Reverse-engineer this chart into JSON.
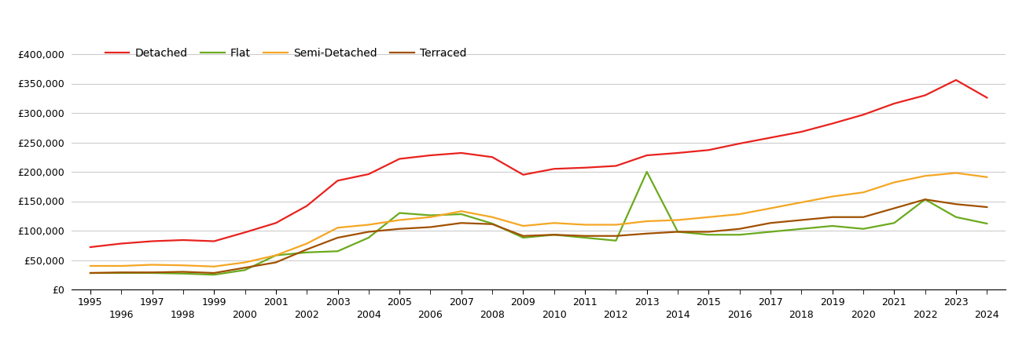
{
  "years": [
    1995,
    1996,
    1997,
    1998,
    1999,
    2000,
    2001,
    2002,
    2003,
    2004,
    2005,
    2006,
    2007,
    2008,
    2009,
    2010,
    2011,
    2012,
    2013,
    2014,
    2015,
    2016,
    2017,
    2018,
    2019,
    2020,
    2021,
    2022,
    2023,
    2024
  ],
  "detached": [
    72000,
    78000,
    82000,
    84000,
    82000,
    97000,
    113000,
    142000,
    185000,
    196000,
    222000,
    228000,
    232000,
    225000,
    195000,
    205000,
    207000,
    210000,
    228000,
    232000,
    237000,
    248000,
    258000,
    268000,
    282000,
    297000,
    316000,
    330000,
    356000,
    326000
  ],
  "flat": [
    28000,
    28000,
    28000,
    27000,
    25000,
    33000,
    58000,
    63000,
    65000,
    88000,
    130000,
    126000,
    128000,
    112000,
    88000,
    93000,
    88000,
    83000,
    200000,
    98000,
    93000,
    93000,
    98000,
    103000,
    108000,
    103000,
    113000,
    153000,
    123000,
    112000
  ],
  "semi_detached": [
    40000,
    40000,
    42000,
    41000,
    39000,
    46000,
    58000,
    78000,
    105000,
    110000,
    118000,
    123000,
    133000,
    123000,
    108000,
    113000,
    110000,
    110000,
    116000,
    118000,
    123000,
    128000,
    138000,
    148000,
    158000,
    165000,
    182000,
    193000,
    198000,
    191000
  ],
  "terraced": [
    28000,
    29000,
    29000,
    30000,
    28000,
    37000,
    46000,
    68000,
    88000,
    98000,
    103000,
    106000,
    113000,
    111000,
    91000,
    93000,
    91000,
    91000,
    95000,
    98000,
    98000,
    103000,
    113000,
    118000,
    123000,
    123000,
    138000,
    153000,
    145000,
    140000
  ],
  "colors": {
    "detached": "#e8221e",
    "flat": "#6aaa1e",
    "semi_detached": "#f5a623",
    "terraced": "#a05000"
  },
  "ylim": [
    0,
    420000
  ],
  "yticks": [
    0,
    50000,
    100000,
    150000,
    200000,
    250000,
    300000,
    350000,
    400000
  ],
  "odd_years": [
    1995,
    1997,
    1999,
    2001,
    2003,
    2005,
    2007,
    2009,
    2011,
    2013,
    2015,
    2017,
    2019,
    2021,
    2023
  ],
  "even_years": [
    1996,
    1998,
    2000,
    2002,
    2004,
    2006,
    2008,
    2010,
    2012,
    2014,
    2016,
    2018,
    2020,
    2022,
    2024
  ],
  "xlim": [
    1994.4,
    2024.6
  ],
  "background_color": "#ffffff",
  "grid_color": "#cccccc",
  "line_width": 1.6
}
